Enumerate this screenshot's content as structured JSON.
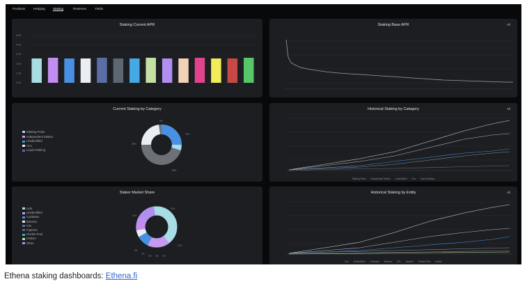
{
  "nav": {
    "tabs": [
      "Positions",
      "Hedging",
      "Staking",
      "Reserves",
      "Yields"
    ],
    "active_index": 2
  },
  "panels": {
    "apr_bar": {
      "title": "Staking Current APR",
      "y_ticks": [
        "5.0%",
        "4.0%",
        "3.0%",
        "2.0%",
        "1.0%",
        "0.0%"
      ],
      "bar_colors": [
        "#a8dde3",
        "#c38cf0",
        "#4a90e2",
        "#e8eef3",
        "#5b6ea6",
        "#5c6773",
        "#45a9e6",
        "#c5e0a4",
        "#b18ef0",
        "#f2d2b6",
        "#e0458c",
        "#f3ec5a",
        "#c84848",
        "#56c86a"
      ]
    },
    "base_apr": {
      "title": "Staking Base APR",
      "dropdown": "All"
    },
    "by_category": {
      "title": "Current Staking by Category",
      "legend": [
        {
          "label": "Staking Pools",
          "color": "#a9dde6"
        },
        {
          "label": "Independent Stakes",
          "color": "#c59af0"
        },
        {
          "label": "Unidentified",
          "color": "#4a90e2"
        },
        {
          "label": "Cex",
          "color": "#e8eef3"
        },
        {
          "label": "Liquid Staking",
          "color": "#5b6ea6"
        }
      ],
      "slice_labels": [
        "3%",
        "15%",
        "28%",
        "55%"
      ]
    },
    "hist_category": {
      "title": "Historical Staking by Category",
      "dropdown": "All",
      "legend": [
        "Staking Pools",
        "Independent Stakes",
        "Unidentified",
        "Cex",
        "Liquid Staking"
      ]
    },
    "market_share": {
      "title": "Staker Market Share",
      "legend": [
        {
          "label": "Lido",
          "color": "#a9dde6"
        },
        {
          "label": "Unidentified",
          "color": "#c59af0"
        },
        {
          "label": "Coinbase",
          "color": "#4a90e2"
        },
        {
          "label": "Binance",
          "color": "#e8eef3"
        },
        {
          "label": "Kiln",
          "color": "#5b6ea6"
        },
        {
          "label": "Figment",
          "color": "#5c6773"
        },
        {
          "label": "Rocket Pool",
          "color": "#45a9e6"
        },
        {
          "label": "Kraken",
          "color": "#c5e0a4"
        },
        {
          "label": "Other",
          "color": "#b18ef0"
        }
      ],
      "slice_labels": [
        "31%",
        "21%",
        "11%",
        "4%",
        "4%",
        "3%",
        "3%",
        "2%"
      ]
    },
    "hist_entity": {
      "title": "Historical Staking by Entity",
      "dropdown": "All",
      "legend": [
        "Lido",
        "Unidentified",
        "Coinbase",
        "Binance",
        "Kiln",
        "Figment",
        "Rocket Pool",
        "Kraken"
      ]
    }
  },
  "caption": {
    "text": "Ethena staking dashboards: ",
    "link": "Ethena.fi"
  }
}
